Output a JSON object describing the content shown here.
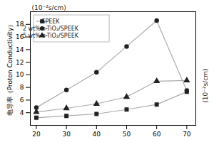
{
  "chart_data": {
    "type": "line",
    "ylabel": "电导率（Proton Conductivity）",
    "y2label": "(10⁻²s/cm)",
    "annotations": [
      "(10⁻²s/cm)"
    ],
    "x": [
      20,
      30,
      40,
      50,
      60,
      70
    ],
    "series": [
      {
        "name": "SPEEK",
        "color": "#aaaaaa",
        "marker": "square",
        "values": [
          3.2,
          3.5,
          3.8,
          4.5,
          5.3,
          7.3
        ]
      },
      {
        "name": "2 wt% s-TiO₂/SPEEK",
        "color": "#aaaaaa",
        "marker": "circle",
        "values": [
          4.8,
          7.6,
          10.4,
          14.5,
          18.6,
          7.5
        ]
      },
      {
        "name": "5 wt% s-TiO₂/SPEEK",
        "color": "#aaaaaa",
        "marker": "triangle",
        "values": [
          4.1,
          4.7,
          5.4,
          6.5,
          9.0,
          9.1
        ]
      }
    ],
    "xlim": [
      18,
      73
    ],
    "ylim": [
      2,
      20
    ],
    "xticks": [
      20,
      30,
      40,
      50,
      60,
      70
    ],
    "yticks": [
      4,
      6,
      8,
      10,
      12,
      14,
      16,
      18
    ],
    "grid": false,
    "legend": "upper left"
  }
}
